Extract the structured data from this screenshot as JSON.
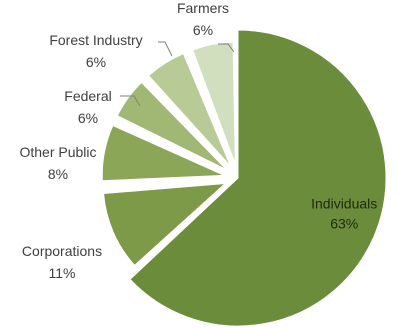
{
  "chart_data": {
    "type": "pie",
    "exploded": true,
    "slices": [
      {
        "label": "Individuals",
        "value": 63,
        "value_label": "63%",
        "color": "#6b8c3a",
        "label_placement": "inside"
      },
      {
        "label": "Corporations",
        "value": 11,
        "value_label": "11%",
        "color": "#7c9a48",
        "label_placement": "outside"
      },
      {
        "label": "Other Public",
        "value": 8,
        "value_label": "8%",
        "color": "#8aa656",
        "label_placement": "outside"
      },
      {
        "label": "Federal",
        "value": 6,
        "value_label": "6%",
        "color": "#a0b874",
        "label_placement": "outside"
      },
      {
        "label": "Forest Industry",
        "value": 6,
        "value_label": "6%",
        "color": "#b8cb96",
        "label_placement": "outside"
      },
      {
        "label": "Farmers",
        "value": 6,
        "value_label": "6%",
        "color": "#d2dfbf",
        "label_placement": "outside"
      }
    ],
    "legend": "none"
  }
}
